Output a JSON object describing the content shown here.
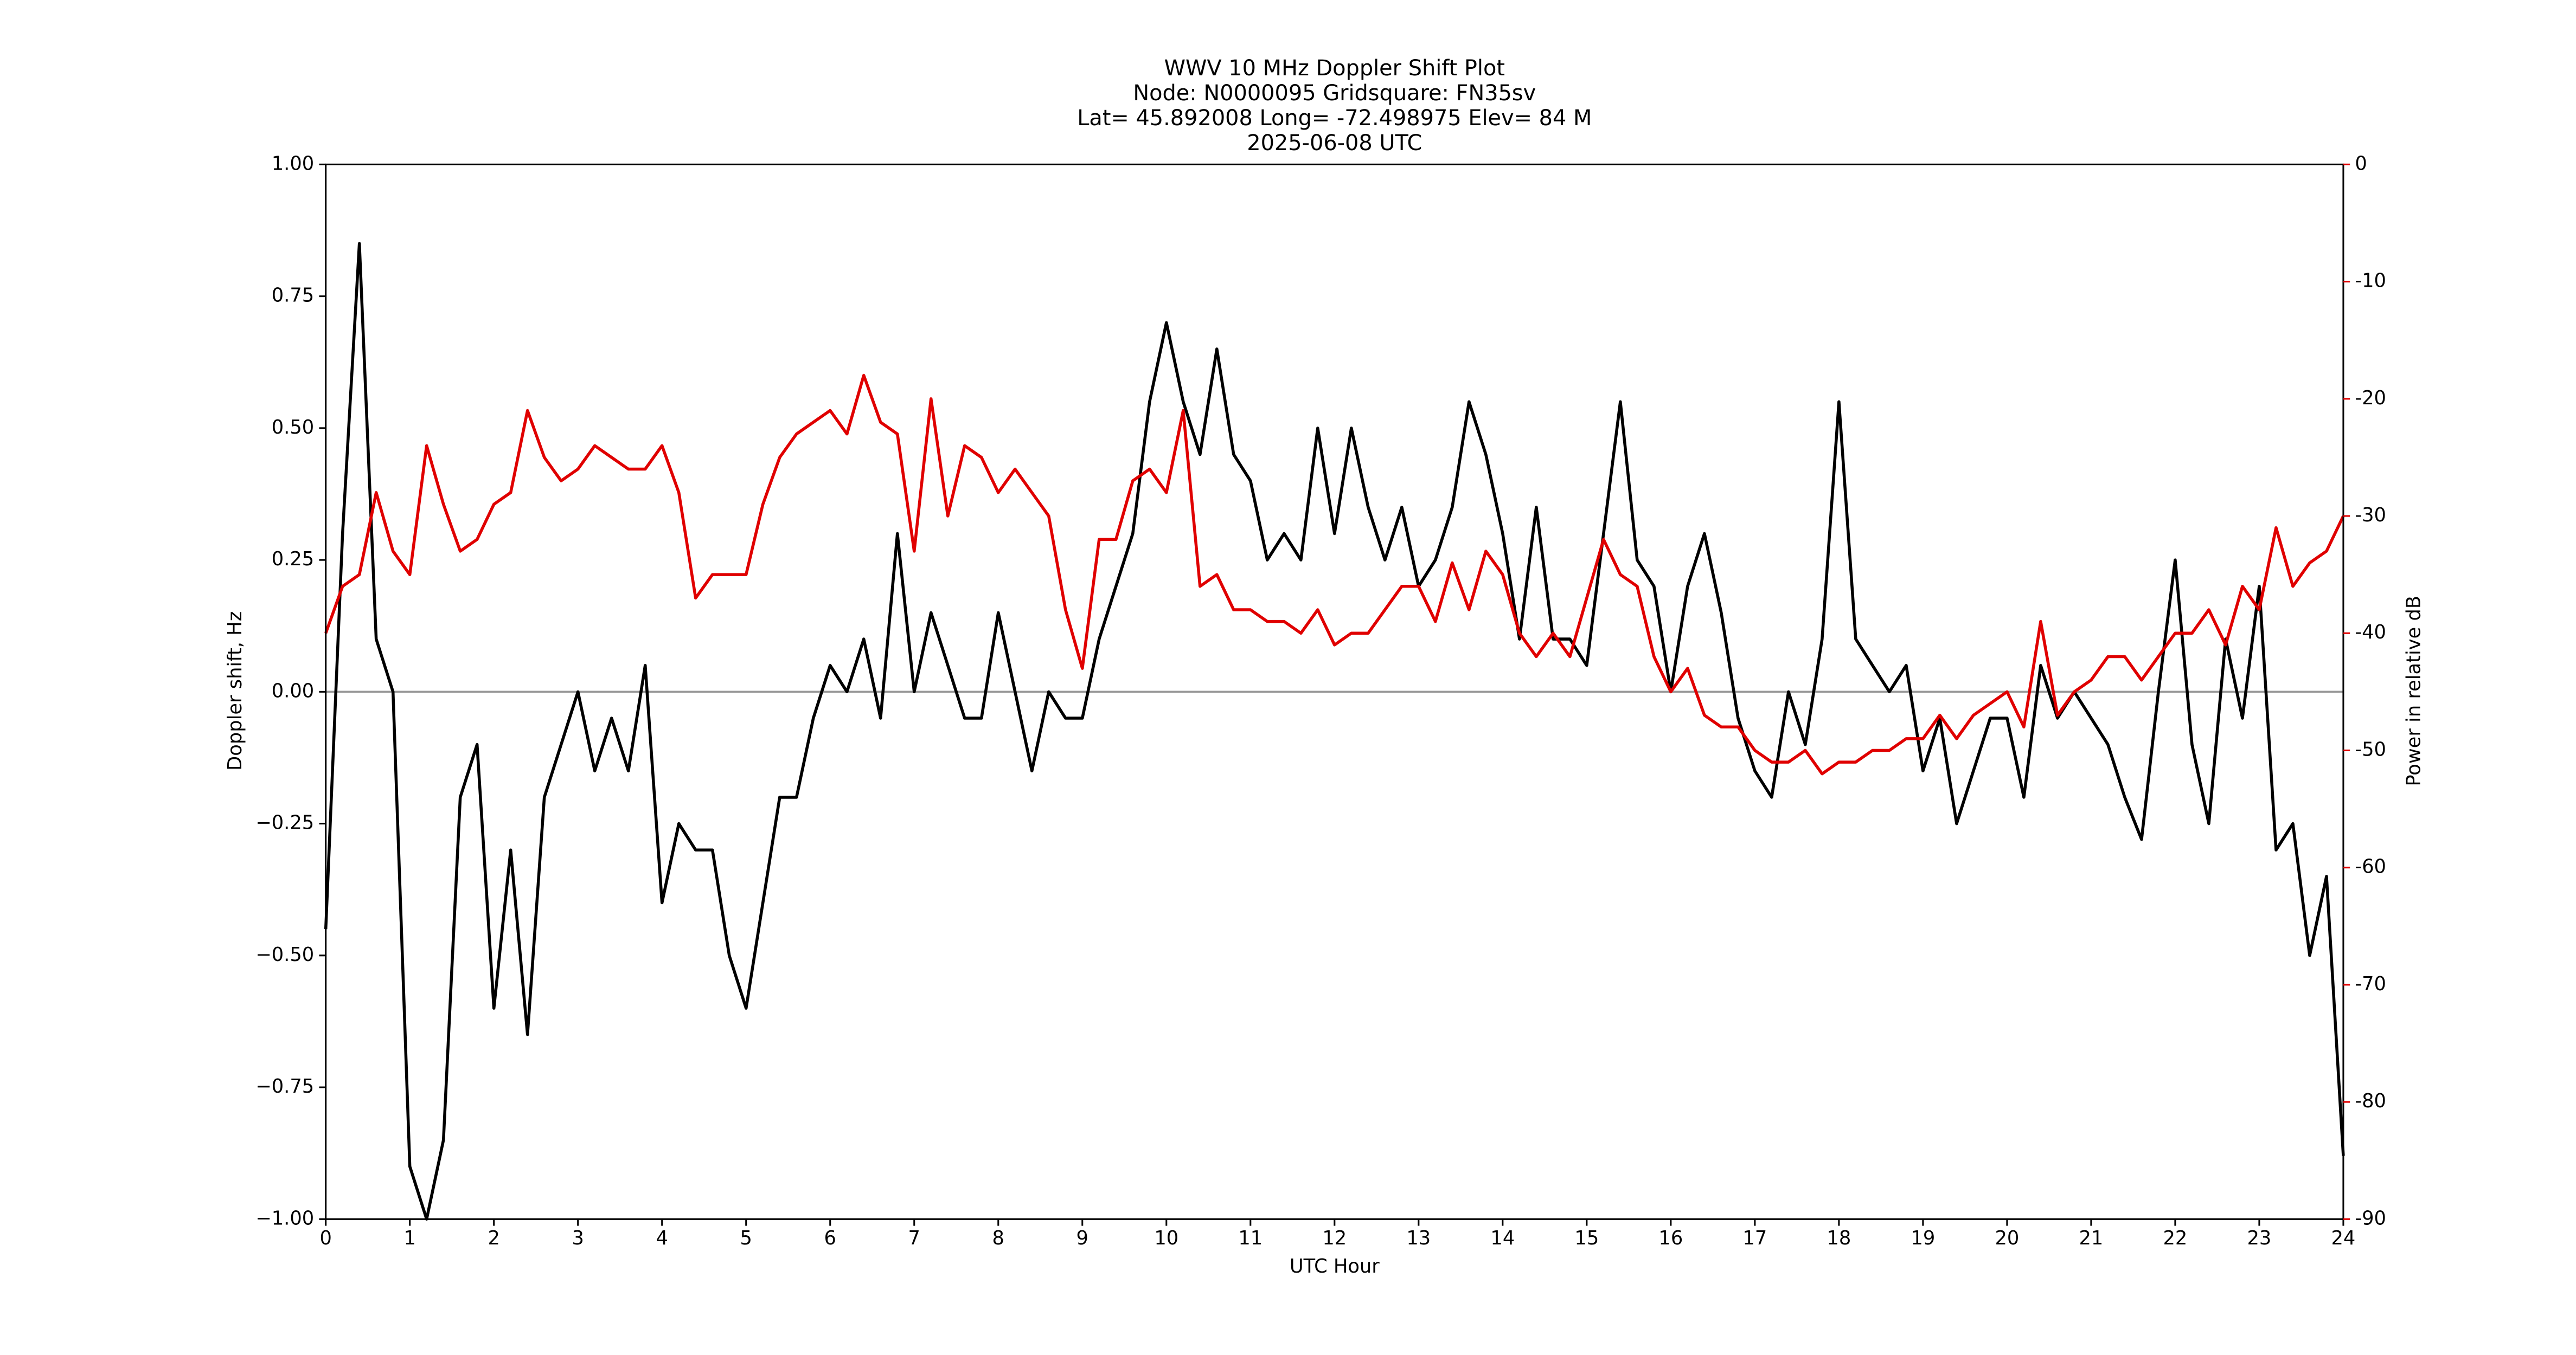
{
  "chart_data": {
    "type": "line",
    "title": [
      "WWV 10 MHz Doppler Shift Plot",
      "Node:  N0000095     Gridsquare:  FN35sv",
      "Lat= 45.892008    Long= -72.498975    Elev= 84 M",
      "2025-06-08  UTC"
    ],
    "xlabel": "UTC Hour",
    "ylabel": "Doppler shift, Hz",
    "y2label": "Power in relative dB",
    "xlim": [
      0,
      24
    ],
    "xticks": [
      0,
      1,
      2,
      3,
      4,
      5,
      6,
      7,
      8,
      9,
      10,
      11,
      12,
      13,
      14,
      15,
      16,
      17,
      18,
      19,
      20,
      21,
      22,
      23,
      24
    ],
    "ylim": [
      -1,
      1
    ],
    "yticks": [
      {
        "value": -1,
        "label": "−1.00"
      },
      {
        "value": -0.75,
        "label": "−0.75"
      },
      {
        "value": -0.5,
        "label": "−0.50"
      },
      {
        "value": -0.25,
        "label": "−0.25"
      },
      {
        "value": 0,
        "label": "0.00"
      },
      {
        "value": 0.25,
        "label": "0.25"
      },
      {
        "value": 0.5,
        "label": "0.50"
      },
      {
        "value": 0.75,
        "label": "0.75"
      },
      {
        "value": 1,
        "label": "1.00"
      }
    ],
    "y2lim": [
      -90,
      0
    ],
    "y2ticks": [
      -90,
      -80,
      -70,
      -60,
      -50,
      -40,
      -30,
      -20,
      -10,
      0
    ],
    "hline": 0,
    "x": [
      0,
      0.2,
      0.4,
      0.6,
      0.8,
      1,
      1.2,
      1.4,
      1.6,
      1.8,
      2,
      2.2,
      2.4,
      2.6,
      2.8,
      3,
      3.2,
      3.4,
      3.6,
      3.8,
      4,
      4.2,
      4.4,
      4.6,
      4.8,
      5,
      5.2,
      5.4,
      5.6,
      5.8,
      6,
      6.2,
      6.4,
      6.6,
      6.8,
      7,
      7.2,
      7.4,
      7.6,
      7.8,
      8,
      8.2,
      8.4,
      8.6,
      8.8,
      9,
      9.2,
      9.4,
      9.6,
      9.8,
      10,
      10.2,
      10.4,
      10.6,
      10.8,
      11,
      11.2,
      11.4,
      11.6,
      11.8,
      12,
      12.2,
      12.4,
      12.6,
      12.8,
      13,
      13.2,
      13.4,
      13.6,
      13.8,
      14,
      14.2,
      14.4,
      14.6,
      14.8,
      15,
      15.2,
      15.4,
      15.6,
      15.8,
      16,
      16.2,
      16.4,
      16.6,
      16.8,
      17,
      17.2,
      17.4,
      17.6,
      17.8,
      18,
      18.2,
      18.4,
      18.6,
      18.8,
      19,
      19.2,
      19.4,
      19.6,
      19.8,
      20,
      20.2,
      20.4,
      20.6,
      20.8,
      21,
      21.2,
      21.4,
      21.6,
      21.8,
      22,
      22.2,
      22.4,
      22.6,
      22.8,
      23,
      23.2,
      23.4,
      23.6,
      23.8,
      24
    ],
    "series": [
      {
        "name": "Doppler shift",
        "color": "#000000",
        "axis": "y",
        "values": [
          -0.45,
          0.3,
          0.85,
          0.1,
          0.0,
          -0.9,
          -1.0,
          -0.85,
          -0.2,
          -0.1,
          -0.6,
          -0.3,
          -0.65,
          -0.2,
          -0.1,
          0.0,
          -0.15,
          -0.05,
          -0.15,
          0.05,
          -0.4,
          -0.25,
          -0.3,
          -0.3,
          -0.5,
          -0.6,
          -0.4,
          -0.2,
          -0.2,
          -0.05,
          0.05,
          0.0,
          0.1,
          -0.05,
          0.3,
          0.0,
          0.15,
          0.05,
          -0.05,
          -0.05,
          0.15,
          0.0,
          -0.15,
          0.0,
          -0.05,
          -0.05,
          0.1,
          0.2,
          0.3,
          0.55,
          0.7,
          0.55,
          0.45,
          0.65,
          0.45,
          0.4,
          0.25,
          0.3,
          0.25,
          0.5,
          0.3,
          0.5,
          0.35,
          0.25,
          0.35,
          0.2,
          0.25,
          0.35,
          0.55,
          0.45,
          0.3,
          0.1,
          0.35,
          0.1,
          0.1,
          0.05,
          0.3,
          0.55,
          0.25,
          0.2,
          0.0,
          0.2,
          0.3,
          0.15,
          -0.05,
          -0.15,
          -0.2,
          0.0,
          -0.1,
          0.1,
          0.55,
          0.1,
          0.05,
          0.0,
          0.05,
          -0.15,
          -0.05,
          -0.25,
          -0.15,
          -0.05,
          -0.05,
          -0.2,
          0.05,
          -0.05,
          0.0,
          -0.05,
          -0.1,
          -0.2,
          -0.28,
          0.0,
          0.25,
          -0.1,
          -0.25,
          0.1,
          -0.05,
          0.2,
          -0.3,
          -0.25,
          -0.5,
          -0.35,
          -0.88
        ]
      },
      {
        "name": "Power",
        "color": "#e00000",
        "axis": "y2",
        "values": [
          -40,
          -36,
          -35,
          -28,
          -33,
          -35,
          -24,
          -29,
          -33,
          -32,
          -29,
          -28,
          -21,
          -25,
          -27,
          -26,
          -24,
          -25,
          -26,
          -26,
          -24,
          -28,
          -37,
          -35,
          -35,
          -35,
          -29,
          -25,
          -23,
          -22,
          -21,
          -23,
          -18,
          -22,
          -23,
          -33,
          -20,
          -30,
          -24,
          -25,
          -28,
          -26,
          -28,
          -30,
          -38,
          -43,
          -32,
          -32,
          -27,
          -26,
          -28,
          -21,
          -36,
          -35,
          -38,
          -38,
          -39,
          -39,
          -40,
          -38,
          -41,
          -40,
          -40,
          -38,
          -36,
          -36,
          -39,
          -34,
          -38,
          -33,
          -35,
          -40,
          -42,
          -40,
          -42,
          -37,
          -32,
          -35,
          -36,
          -42,
          -45,
          -43,
          -47,
          -48,
          -48,
          -50,
          -51,
          -51,
          -50,
          -52,
          -51,
          -51,
          -50,
          -50,
          -49,
          -49,
          -47,
          -49,
          -47,
          -46,
          -45,
          -48,
          -39,
          -47,
          -45,
          -44,
          -42,
          -42,
          -44,
          -42,
          -40,
          -40,
          -38,
          -41,
          -36,
          -38,
          -31,
          -36,
          -34,
          -33,
          -30
        ]
      }
    ]
  }
}
